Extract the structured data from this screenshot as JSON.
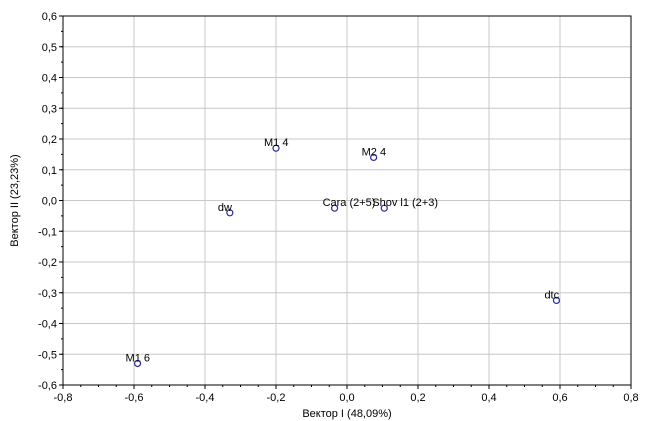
{
  "chart_data": {
    "type": "scatter",
    "title": "",
    "xlabel": "Вектор I (48,09%)",
    "ylabel": "Вектор II (23,23%)",
    "xlim": [
      -0.8,
      0.8
    ],
    "ylim": [
      -0.6,
      0.6
    ],
    "x_ticks": [
      "-0,8",
      "-0,6",
      "-0,4",
      "-0,2",
      "0,0",
      "0,2",
      "0,4",
      "0,6",
      "0,8"
    ],
    "y_ticks": [
      "0,6",
      "0,5",
      "0,4",
      "0,3",
      "0,2",
      "0,1",
      "0,0",
      "-0,1",
      "-0,2",
      "-0,3",
      "-0,4",
      "-0,5",
      "-0,6"
    ],
    "grid": true,
    "points": [
      {
        "label": "M1 4",
        "x": -0.2,
        "y": 0.17
      },
      {
        "label": "M2 4",
        "x": 0.075,
        "y": 0.14
      },
      {
        "label": "dw",
        "x": -0.33,
        "y": -0.04
      },
      {
        "label": "Cara (2+5)",
        "x": -0.035,
        "y": -0.025
      },
      {
        "label": "Shov l1 (2+3)",
        "x": 0.105,
        "y": -0.025
      },
      {
        "label": "dtc",
        "x": 0.59,
        "y": -0.325
      },
      {
        "label": "M1 6",
        "x": -0.59,
        "y": -0.53
      }
    ],
    "colors": {
      "marker": "#2a2aa0",
      "grid": "#c8c8c8",
      "axis": "#000000"
    }
  }
}
